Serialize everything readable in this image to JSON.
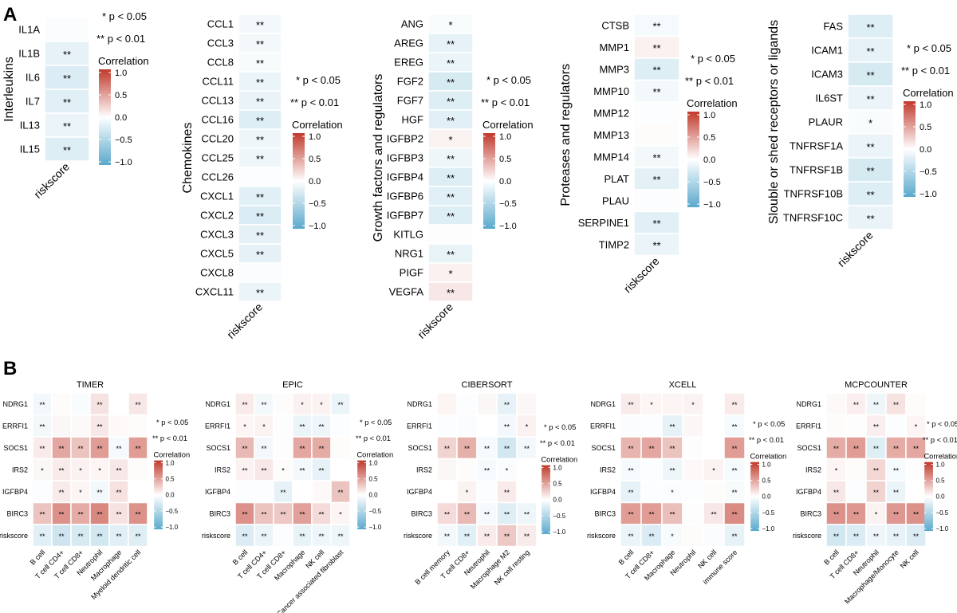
{
  "panel_labels": {
    "a": "A",
    "b": "B"
  },
  "legend": {
    "sig1": "* p < 0.05",
    "sig2": "** p < 0.01",
    "title": "Correlation",
    "ticks": [
      "1.0",
      "0.5",
      "0.0",
      "−0.5",
      "−1.0"
    ],
    "tick_values": [
      1.0,
      0.5,
      0.0,
      -0.5,
      -1.0
    ],
    "colors": {
      "high": "#c0392b",
      "mid": "#ffffff",
      "low": "#5aa9cc"
    }
  },
  "chart_data": [
    {
      "type": "heatmap",
      "panel": "A",
      "ylabel": "Interleukins",
      "columns": [
        "riskscore"
      ],
      "rows": [
        "IL1A",
        "IL1B",
        "IL6",
        "IL7",
        "IL13",
        "IL15"
      ],
      "values": [
        [
          -0.03
        ],
        [
          -0.15
        ],
        [
          -0.22
        ],
        [
          -0.18
        ],
        [
          -0.12
        ],
        [
          -0.2
        ]
      ],
      "sig": [
        [
          ""
        ],
        [
          "**"
        ],
        [
          "**"
        ],
        [
          "**"
        ],
        [
          "**"
        ],
        [
          "**"
        ]
      ],
      "clim": [
        -1,
        1
      ]
    },
    {
      "type": "heatmap",
      "panel": "A",
      "ylabel": "Chemokines",
      "columns": [
        "riskscore"
      ],
      "rows": [
        "CCL1",
        "CCL3",
        "CCL8",
        "CCL11",
        "CCL13",
        "CCL16",
        "CCL20",
        "CCL25",
        "CCL26",
        "CXCL1",
        "CXCL2",
        "CXCL3",
        "CXCL5",
        "CXCL8",
        "CXCL11"
      ],
      "values": [
        [
          -0.07
        ],
        [
          -0.07
        ],
        [
          -0.05
        ],
        [
          -0.12
        ],
        [
          -0.13
        ],
        [
          -0.2
        ],
        [
          -0.1
        ],
        [
          -0.1
        ],
        [
          -0.02
        ],
        [
          -0.18
        ],
        [
          -0.23
        ],
        [
          -0.16
        ],
        [
          -0.16
        ],
        [
          -0.03
        ],
        [
          -0.12
        ]
      ],
      "sig": [
        [
          "**"
        ],
        [
          "**"
        ],
        [
          "**"
        ],
        [
          "**"
        ],
        [
          "**"
        ],
        [
          "**"
        ],
        [
          "**"
        ],
        [
          "**"
        ],
        [
          ""
        ],
        [
          "**"
        ],
        [
          "**"
        ],
        [
          "**"
        ],
        [
          "**"
        ],
        [
          ""
        ],
        [
          "**"
        ]
      ],
      "clim": [
        -1,
        1
      ]
    },
    {
      "type": "heatmap",
      "panel": "A",
      "ylabel": "Growth factors and regulators",
      "columns": [
        "riskscore"
      ],
      "rows": [
        "ANG",
        "AREG",
        "EREG",
        "FGF2",
        "FGF7",
        "HGF",
        "IGFBP2",
        "IGFBP3",
        "IGFBP4",
        "IGFBP6",
        "IGFBP7",
        "KITLG",
        "NRG1",
        "PIGF",
        "VEGFA"
      ],
      "values": [
        [
          -0.04
        ],
        [
          -0.15
        ],
        [
          -0.12
        ],
        [
          -0.25
        ],
        [
          -0.2
        ],
        [
          -0.18
        ],
        [
          0.06
        ],
        [
          -0.1
        ],
        [
          -0.2
        ],
        [
          -0.18
        ],
        [
          -0.2
        ],
        [
          0.01
        ],
        [
          -0.14
        ],
        [
          0.07
        ],
        [
          0.12
        ]
      ],
      "sig": [
        [
          "*"
        ],
        [
          "**"
        ],
        [
          "**"
        ],
        [
          "**"
        ],
        [
          "**"
        ],
        [
          "**"
        ],
        [
          "*"
        ],
        [
          "**"
        ],
        [
          "**"
        ],
        [
          "**"
        ],
        [
          "**"
        ],
        [
          ""
        ],
        [
          "**"
        ],
        [
          "*"
        ],
        [
          "**"
        ]
      ],
      "clim": [
        -1,
        1
      ]
    },
    {
      "type": "heatmap",
      "panel": "A",
      "ylabel": "Proteases and regulators",
      "columns": [
        "riskscore"
      ],
      "rows": [
        "CTSB",
        "MMP1",
        "MMP3",
        "MMP10",
        "MMP12",
        "MMP13",
        "MMP14",
        "PLAT",
        "PLAU",
        "SERPINE1",
        "TIMP2"
      ],
      "values": [
        [
          -0.06
        ],
        [
          0.07
        ],
        [
          -0.2
        ],
        [
          -0.07
        ],
        [
          -0.02
        ],
        [
          0.02
        ],
        [
          -0.07
        ],
        [
          -0.17
        ],
        [
          -0.02
        ],
        [
          -0.18
        ],
        [
          -0.12
        ]
      ],
      "sig": [
        [
          "**"
        ],
        [
          "**"
        ],
        [
          "**"
        ],
        [
          "**"
        ],
        [
          ""
        ],
        [
          ""
        ],
        [
          "**"
        ],
        [
          "**"
        ],
        [
          ""
        ],
        [
          "**"
        ],
        [
          "**"
        ]
      ],
      "clim": [
        -1,
        1
      ]
    },
    {
      "type": "heatmap",
      "panel": "A",
      "ylabel": "Slouble or shed receptors or ligands",
      "columns": [
        "riskscore"
      ],
      "rows": [
        "FAS",
        "ICAM1",
        "ICAM3",
        "IL6ST",
        "PLAUR",
        "TNFRSF1A",
        "TNFRSF1B",
        "TNFRSF10B",
        "TNFRSF10C"
      ],
      "values": [
        [
          -0.2
        ],
        [
          -0.15
        ],
        [
          -0.25
        ],
        [
          -0.12
        ],
        [
          -0.04
        ],
        [
          -0.12
        ],
        [
          -0.25
        ],
        [
          -0.2
        ],
        [
          -0.13
        ]
      ],
      "sig": [
        [
          "**"
        ],
        [
          "**"
        ],
        [
          "**"
        ],
        [
          "**"
        ],
        [
          "*"
        ],
        [
          "**"
        ],
        [
          "**"
        ],
        [
          "**"
        ],
        [
          "**"
        ]
      ],
      "clim": [
        -1,
        1
      ]
    },
    {
      "type": "heatmap",
      "panel": "B",
      "title": "TIMER",
      "columns": [
        "B cell",
        "T cell CD4+",
        "T cell CD8+",
        "Neutrophil",
        "Macrophage",
        "Myeloid dendritic cell"
      ],
      "rows": [
        "NDRG1",
        "ERRFI1",
        "SOCS1",
        "IRS2",
        "IGFBP4",
        "BIRC3",
        "riskscore"
      ],
      "values": [
        [
          -0.08,
          0.02,
          -0.04,
          0.14,
          0.0,
          0.12
        ],
        [
          -0.07,
          0.04,
          0.03,
          0.12,
          0.03,
          0.02
        ],
        [
          0.1,
          0.45,
          0.3,
          0.5,
          -0.06,
          0.5
        ],
        [
          0.04,
          0.1,
          0.07,
          0.05,
          0.12,
          0.02
        ],
        [
          -0.02,
          0.1,
          0.05,
          -0.08,
          0.14,
          0.0
        ],
        [
          0.3,
          0.55,
          0.42,
          0.6,
          0.14,
          0.55
        ],
        [
          -0.18,
          -0.3,
          -0.25,
          -0.28,
          -0.18,
          -0.2
        ]
      ],
      "sig": [
        [
          "**",
          "",
          "",
          "**",
          "",
          "**"
        ],
        [
          "**",
          "",
          "",
          "**",
          "",
          ""
        ],
        [
          "**",
          "**",
          "**",
          "**",
          "**",
          "**"
        ],
        [
          "*",
          "**",
          "*",
          "*",
          "**",
          ""
        ],
        [
          "",
          "**",
          "*",
          "**",
          "**",
          ""
        ],
        [
          "**",
          "**",
          "**",
          "**",
          "**",
          "**"
        ],
        [
          "**",
          "**",
          "**",
          "**",
          "**",
          "**"
        ]
      ],
      "clim": [
        -1,
        1
      ]
    },
    {
      "type": "heatmap",
      "panel": "B",
      "title": "EPIC",
      "columns": [
        "B cell",
        "T cell CD4+",
        "T cell CD8+",
        "Macrophage",
        "NK cell",
        "Cancer associated fibroblast"
      ],
      "rows": [
        "NDRG1",
        "ERRFI1",
        "SOCS1",
        "IRS2",
        "IGFBP4",
        "BIRC3",
        "riskscore"
      ],
      "values": [
        [
          0.1,
          -0.07,
          0.02,
          0.07,
          0.06,
          -0.12
        ],
        [
          0.05,
          0.06,
          0.01,
          -0.12,
          -0.1,
          -0.02
        ],
        [
          0.35,
          -0.08,
          0.01,
          0.45,
          0.42,
          0.02
        ],
        [
          0.07,
          0.12,
          0.02,
          -0.08,
          -0.15,
          0.0
        ],
        [
          -0.02,
          -0.02,
          -0.15,
          0.0,
          0.03,
          0.3
        ],
        [
          0.55,
          0.3,
          0.28,
          0.48,
          0.18,
          0.05
        ],
        [
          -0.22,
          -0.12,
          -0.02,
          -0.14,
          -0.1,
          -0.1
        ]
      ],
      "sig": [
        [
          "**",
          "**",
          "",
          "*",
          "*",
          "**"
        ],
        [
          "*",
          "*",
          "",
          "**",
          "**",
          ""
        ],
        [
          "**",
          "**",
          "",
          "**",
          "**",
          ""
        ],
        [
          "**",
          "**",
          "*",
          "**",
          "**",
          ""
        ],
        [
          "",
          "",
          "**",
          "",
          "",
          "**"
        ],
        [
          "**",
          "**",
          "**",
          "**",
          "**",
          "*"
        ],
        [
          "**",
          "**",
          "",
          "**",
          "**",
          "**"
        ]
      ],
      "clim": [
        -1,
        1
      ]
    },
    {
      "type": "heatmap",
      "panel": "B",
      "title": "CIBERSORT",
      "columns": [
        "B cell memory",
        "T cell CD8+",
        "Neutrophil",
        "Macrophage M2",
        "NK cell resting"
      ],
      "rows": [
        "NDRG1",
        "ERRFI1",
        "SOCS1",
        "IRS2",
        "IGFBP4",
        "BIRC3",
        "riskscore"
      ],
      "values": [
        [
          0.05,
          -0.02,
          0.04,
          -0.15,
          0.04
        ],
        [
          -0.02,
          -0.03,
          0.0,
          -0.08,
          0.07
        ],
        [
          0.22,
          0.4,
          -0.06,
          -0.28,
          -0.08
        ],
        [
          0.04,
          0.02,
          -0.06,
          -0.03,
          0.0
        ],
        [
          0.0,
          0.06,
          -0.02,
          0.1,
          0.0
        ],
        [
          0.18,
          0.35,
          -0.06,
          -0.2,
          -0.1
        ],
        [
          -0.08,
          -0.18,
          0.1,
          0.28,
          0.1
        ]
      ],
      "sig": [
        [
          "",
          "",
          "",
          "**",
          ""
        ],
        [
          "",
          "",
          "",
          "**",
          "*"
        ],
        [
          "**",
          "**",
          "**",
          "**",
          "**"
        ],
        [
          "",
          "",
          "**",
          "*",
          ""
        ],
        [
          "",
          "*",
          "",
          "**",
          ""
        ],
        [
          "**",
          "**",
          "**",
          "**",
          "**"
        ],
        [
          "**",
          "**",
          "**",
          "**",
          "**"
        ]
      ],
      "clim": [
        -1,
        1
      ]
    },
    {
      "type": "heatmap",
      "panel": "B",
      "title": "XCELL",
      "columns": [
        "B cell",
        "T cell CD8+",
        "Macrophage",
        "Neutrophil",
        "NK cell",
        "immune score"
      ],
      "rows": [
        "NDRG1",
        "ERRFI1",
        "SOCS1",
        "IRS2",
        "IGFBP4",
        "BIRC3",
        "riskscore"
      ],
      "values": [
        [
          0.1,
          0.05,
          0.05,
          0.06,
          0.0,
          0.1
        ],
        [
          -0.03,
          -0.02,
          -0.15,
          0.04,
          0.0,
          -0.06
        ],
        [
          0.38,
          0.45,
          0.3,
          0.01,
          0.0,
          0.5
        ],
        [
          -0.06,
          -0.02,
          -0.1,
          0.03,
          0.06,
          -0.06
        ],
        [
          -0.15,
          -0.02,
          -0.03,
          -0.02,
          0.02,
          -0.05
        ],
        [
          0.5,
          0.5,
          0.32,
          0.01,
          0.12,
          0.58
        ],
        [
          -0.12,
          -0.22,
          -0.05,
          0.02,
          -0.03,
          -0.15
        ]
      ],
      "sig": [
        [
          "**",
          "*",
          "",
          "*",
          "",
          "**"
        ],
        [
          "",
          "",
          "**",
          "",
          "",
          "**"
        ],
        [
          "**",
          "**",
          "**",
          "",
          "",
          "**"
        ],
        [
          "**",
          "",
          "**",
          "",
          "*",
          "**"
        ],
        [
          "**",
          "",
          "*",
          "",
          "",
          "**"
        ],
        [
          "**",
          "**",
          "**",
          "",
          "**",
          "**"
        ],
        [
          "**",
          "**",
          "*",
          "",
          "",
          "**"
        ]
      ],
      "clim": [
        -1,
        1
      ]
    },
    {
      "type": "heatmap",
      "panel": "B",
      "title": "MCPCOUNTER",
      "columns": [
        "B cell",
        "T cell CD8+",
        "Neutrophil",
        "Macrophage/Monocyte",
        "NK cell"
      ],
      "rows": [
        "NDRG1",
        "ERRFI1",
        "SOCS1",
        "IRS2",
        "IGFBP4",
        "BIRC3",
        "riskscore"
      ],
      "values": [
        [
          0.03,
          0.08,
          -0.1,
          0.14,
          0.02
        ],
        [
          0.02,
          0.01,
          0.08,
          -0.02,
          0.05
        ],
        [
          0.42,
          0.5,
          -0.2,
          0.42,
          0.45
        ],
        [
          0.05,
          0.02,
          0.2,
          -0.06,
          0.01
        ],
        [
          0.12,
          -0.02,
          0.22,
          -0.12,
          0.0
        ],
        [
          0.55,
          0.52,
          0.06,
          0.52,
          0.55
        ],
        [
          -0.28,
          -0.22,
          -0.1,
          -0.15,
          -0.22
        ]
      ],
      "sig": [
        [
          "",
          "**",
          "**",
          "**",
          ""
        ],
        [
          "",
          "",
          "**",
          "",
          "*"
        ],
        [
          "**",
          "**",
          "**",
          "**",
          "**"
        ],
        [
          "*",
          "",
          "**",
          "**",
          ""
        ],
        [
          "**",
          "",
          "**",
          "**",
          ""
        ],
        [
          "**",
          "**",
          "*",
          "**",
          "**"
        ],
        [
          "**",
          "**",
          "**",
          "**",
          "**"
        ]
      ],
      "clim": [
        -1,
        1
      ]
    }
  ]
}
